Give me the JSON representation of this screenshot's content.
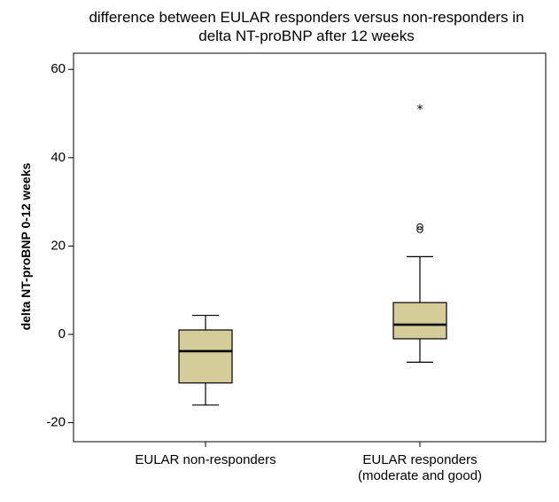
{
  "chart_data": {
    "type": "boxplot",
    "title": [
      "difference between EULAR responders versus non-responders in",
      "delta NT-proBNP after 12 weeks"
    ],
    "xlabel": "",
    "ylabel": "delta NT-proBNP 0-12 weeks",
    "ylim": [
      -24.5,
      64
    ],
    "yticks": [
      -20,
      0,
      20,
      40,
      60
    ],
    "ytick_labels": [
      "-20",
      "0",
      "20",
      "40",
      "60"
    ],
    "grid": false,
    "box_color": "#d4cd99",
    "categories": [
      {
        "label": [
          "EULAR non-responders"
        ],
        "whisker_low": -16,
        "q1": -11,
        "median": -3.8,
        "q3": 1,
        "whisker_high": 4.3,
        "outliers": [],
        "extremes": []
      },
      {
        "label": [
          "EULAR responders",
          "(moderate and good)"
        ],
        "whisker_low": -6.3,
        "q1": -1,
        "median": 2.2,
        "q3": 7.2,
        "whisker_high": 17.6,
        "outliers": [
          23.7,
          24.4
        ],
        "extremes": [
          51
        ]
      }
    ]
  }
}
